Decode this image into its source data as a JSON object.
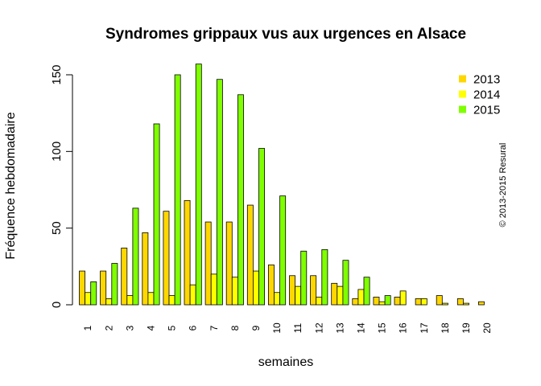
{
  "chart_data": {
    "type": "bar",
    "title": "Syndromes grippaux vus aux urgences en Alsace",
    "xlabel": "semaines",
    "ylabel": "Fréquence hebdomadaire",
    "ylim": [
      0,
      160
    ],
    "yticks": [
      "0",
      "50",
      "100",
      "150"
    ],
    "categories": [
      "1",
      "2",
      "3",
      "4",
      "5",
      "6",
      "7",
      "8",
      "9",
      "10",
      "11",
      "12",
      "13",
      "14",
      "15",
      "16",
      "17",
      "18",
      "19",
      "20"
    ],
    "series": [
      {
        "name": "2013",
        "color": "#FFD700",
        "values": [
          22,
          22,
          37,
          47,
          61,
          68,
          54,
          54,
          65,
          26,
          19,
          19,
          14,
          4,
          5,
          5,
          4,
          6,
          4,
          2
        ]
      },
      {
        "name": "2014",
        "color": "#FFFF00",
        "values": [
          8,
          4,
          6,
          8,
          6,
          13,
          20,
          18,
          22,
          8,
          12,
          5,
          12,
          10,
          2,
          9,
          4,
          1,
          1,
          null
        ]
      },
      {
        "name": "2015",
        "color": "#7FFF00",
        "values": [
          15,
          27,
          63,
          118,
          150,
          157,
          147,
          137,
          102,
          71,
          35,
          36,
          29,
          18,
          6,
          null,
          null,
          null,
          null,
          null
        ]
      }
    ],
    "legend_position": "top-right",
    "grid": false,
    "annotation": "© 2013-2015 Resural"
  }
}
